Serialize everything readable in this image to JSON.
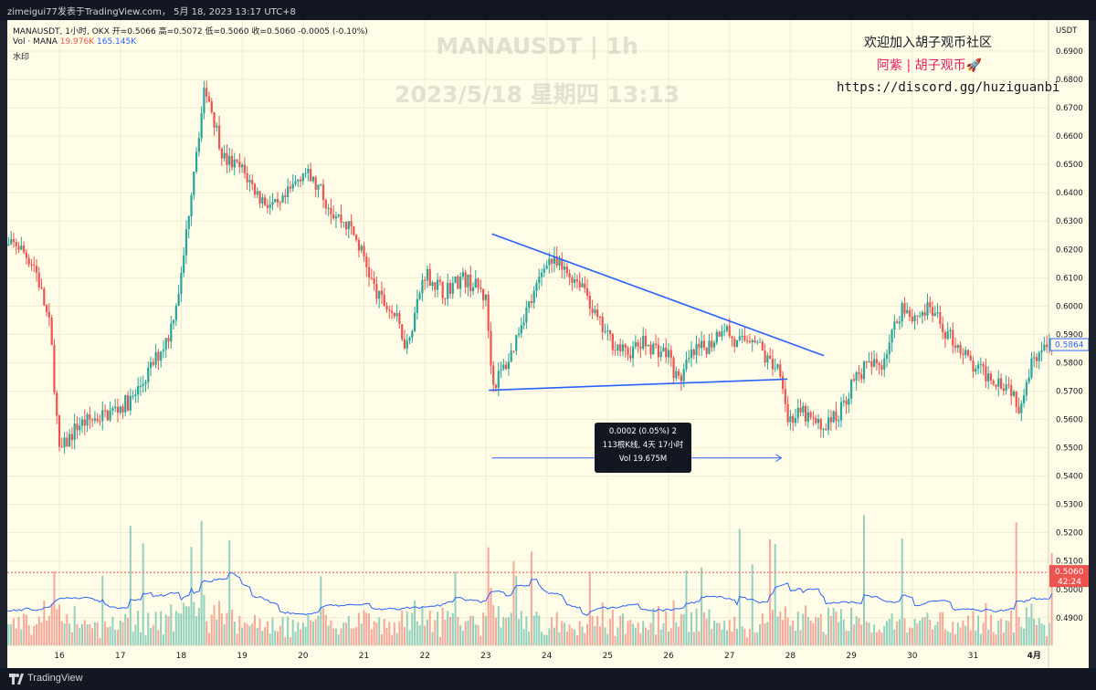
{
  "top_bar": {
    "caption": "zimeigui77发表于TradingView.com， 5月 18, 2023 13:17 UTC+8"
  },
  "legend": {
    "line1": "MANAUSDT, 1小时, OKX  开=0.5066  高=0.5072  低=0.5060  收=0.5060  -0.0005 (-0.10%)",
    "vol_prefix": "Vol · MANA",
    "vol_value_red": "19.976K",
    "vol_value_blue": "165.145K",
    "line3": "水印"
  },
  "watermark": {
    "symbol": "MANAUSDT | 1h",
    "datetime": "2023/5/18 星期四 13:13"
  },
  "promo": {
    "line1": "欢迎加入胡子观币社区",
    "line2": "阿紫 | 胡子观币🚀",
    "line3": "https://discord.gg/huziguanbi"
  },
  "measure_tooltip": {
    "line1": "0.0002 (0.05%) 2",
    "line2": "113根K线, 4天 17小时",
    "line3": "Vol 19.675M"
  },
  "price_axis": {
    "currency": "USDT",
    "ticks": [
      "0.6900",
      "0.6800",
      "0.6700",
      "0.6600",
      "0.6500",
      "0.6400",
      "0.6300",
      "0.6200",
      "0.6100",
      "0.6000",
      "0.5900",
      "0.5800",
      "0.5700",
      "0.5600",
      "0.5500",
      "0.5400",
      "0.5300",
      "0.5200",
      "0.5100",
      "0.5000",
      "0.4900"
    ],
    "current_price_label": "0.5864",
    "last_price_label": "0.5060",
    "countdown_label": "42:24"
  },
  "time_axis": {
    "ticks": [
      "16",
      "17",
      "18",
      "19",
      "20",
      "21",
      "22",
      "23",
      "24",
      "25",
      "26",
      "27",
      "28",
      "29",
      "30",
      "31",
      "4月"
    ]
  },
  "brand": {
    "name": "TradingView"
  },
  "colors": {
    "up": "#26a69a",
    "down": "#ef5350",
    "trendline": "#2962ff",
    "vol_ma": "#2962ff",
    "background": "#fffde7"
  },
  "chart_data": {
    "type": "candlestick",
    "title": "MANAUSDT | 1h",
    "exchange": "OKX",
    "interval": "1小时",
    "ylabel": "USDT",
    "ylim": [
      0.488,
      0.696
    ],
    "x_categories": [
      "16",
      "17",
      "18",
      "19",
      "20",
      "21",
      "22",
      "23",
      "24",
      "25",
      "26",
      "27",
      "28",
      "29",
      "30",
      "31",
      "4月"
    ],
    "close_path": [
      {
        "day": 15.0,
        "price": 0.619
      },
      {
        "day": 15.3,
        "price": 0.622
      },
      {
        "day": 15.6,
        "price": 0.614
      },
      {
        "day": 15.85,
        "price": 0.592
      },
      {
        "day": 16.0,
        "price": 0.548
      },
      {
        "day": 16.3,
        "price": 0.558
      },
      {
        "day": 16.8,
        "price": 0.562
      },
      {
        "day": 17.2,
        "price": 0.567
      },
      {
        "day": 17.5,
        "price": 0.578
      },
      {
        "day": 17.8,
        "price": 0.59
      },
      {
        "day": 18.0,
        "price": 0.61
      },
      {
        "day": 18.2,
        "price": 0.648
      },
      {
        "day": 18.4,
        "price": 0.678
      },
      {
        "day": 18.7,
        "price": 0.652
      },
      {
        "day": 19.0,
        "price": 0.648
      },
      {
        "day": 19.3,
        "price": 0.638
      },
      {
        "day": 19.6,
        "price": 0.634
      },
      {
        "day": 20.0,
        "price": 0.648
      },
      {
        "day": 20.3,
        "price": 0.64
      },
      {
        "day": 20.5,
        "price": 0.633
      },
      {
        "day": 20.8,
        "price": 0.627
      },
      {
        "day": 21.0,
        "price": 0.617
      },
      {
        "day": 21.2,
        "price": 0.604
      },
      {
        "day": 21.5,
        "price": 0.597
      },
      {
        "day": 21.7,
        "price": 0.586
      },
      {
        "day": 22.0,
        "price": 0.612
      },
      {
        "day": 22.3,
        "price": 0.605
      },
      {
        "day": 22.6,
        "price": 0.61
      },
      {
        "day": 22.9,
        "price": 0.606
      },
      {
        "day": 23.0,
        "price": 0.602
      },
      {
        "day": 23.12,
        "price": 0.572
      },
      {
        "day": 23.4,
        "price": 0.582
      },
      {
        "day": 23.6,
        "price": 0.596
      },
      {
        "day": 23.8,
        "price": 0.604
      },
      {
        "day": 24.0,
        "price": 0.617
      },
      {
        "day": 24.3,
        "price": 0.612
      },
      {
        "day": 24.6,
        "price": 0.608
      },
      {
        "day": 24.8,
        "price": 0.596
      },
      {
        "day": 25.0,
        "price": 0.589
      },
      {
        "day": 25.3,
        "price": 0.583
      },
      {
        "day": 25.6,
        "price": 0.587
      },
      {
        "day": 26.0,
        "price": 0.583
      },
      {
        "day": 26.15,
        "price": 0.573
      },
      {
        "day": 26.4,
        "price": 0.583
      },
      {
        "day": 26.7,
        "price": 0.587
      },
      {
        "day": 26.9,
        "price": 0.594
      },
      {
        "day": 27.1,
        "price": 0.586
      },
      {
        "day": 27.4,
        "price": 0.59
      },
      {
        "day": 27.6,
        "price": 0.581
      },
      {
        "day": 27.85,
        "price": 0.578
      },
      {
        "day": 27.95,
        "price": 0.56
      },
      {
        "day": 28.2,
        "price": 0.562
      },
      {
        "day": 28.5,
        "price": 0.557
      },
      {
        "day": 28.8,
        "price": 0.562
      },
      {
        "day": 29.0,
        "price": 0.572
      },
      {
        "day": 29.2,
        "price": 0.578
      },
      {
        "day": 29.5,
        "price": 0.58
      },
      {
        "day": 29.7,
        "price": 0.592
      },
      {
        "day": 29.85,
        "price": 0.601
      },
      {
        "day": 30.0,
        "price": 0.596
      },
      {
        "day": 30.3,
        "price": 0.599
      },
      {
        "day": 30.5,
        "price": 0.592
      },
      {
        "day": 30.8,
        "price": 0.585
      },
      {
        "day": 31.0,
        "price": 0.578
      },
      {
        "day": 31.3,
        "price": 0.575
      },
      {
        "day": 31.6,
        "price": 0.572
      },
      {
        "day": 31.75,
        "price": 0.565
      },
      {
        "day": 32.0,
        "price": 0.583
      },
      {
        "day": 32.3,
        "price": 0.586
      }
    ],
    "annotations": {
      "upper_trendline": [
        {
          "day": 23.1,
          "price": 0.6255
        },
        {
          "day": 28.55,
          "price": 0.5825
        }
      ],
      "lower_trendline": [
        {
          "day": 23.05,
          "price": 0.5703
        },
        {
          "day": 27.95,
          "price": 0.5742
        }
      ],
      "measure_arrow": [
        {
          "day": 23.1,
          "price": 0.5464
        },
        {
          "day": 27.85,
          "price": 0.5464
        }
      ],
      "last_price_line": 0.506
    }
  }
}
